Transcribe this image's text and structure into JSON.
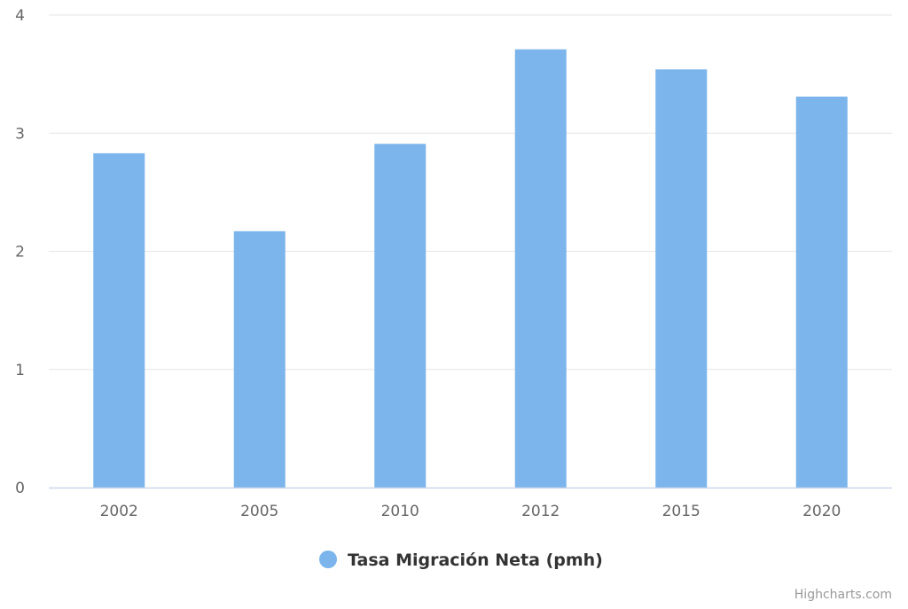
{
  "chart_data": {
    "type": "bar",
    "categories": [
      "2002",
      "2005",
      "2010",
      "2012",
      "2015",
      "2020"
    ],
    "series": [
      {
        "name": "Tasa Migración Neta (pmh)",
        "values": [
          2.83,
          2.17,
          2.91,
          3.71,
          3.54,
          3.31
        ],
        "color": "#7cb5ec"
      }
    ],
    "ylim": [
      0,
      4
    ],
    "yticks": [
      0,
      1,
      2,
      3,
      4
    ],
    "grid": true,
    "legend_position": "bottom-center",
    "title": "",
    "xlabel": "",
    "ylabel": ""
  },
  "colors": {
    "grid": "#e6e6e6",
    "axis_line": "#ccd6eb",
    "bar": "#7cb5ec"
  },
  "credits": "Highcharts.com"
}
